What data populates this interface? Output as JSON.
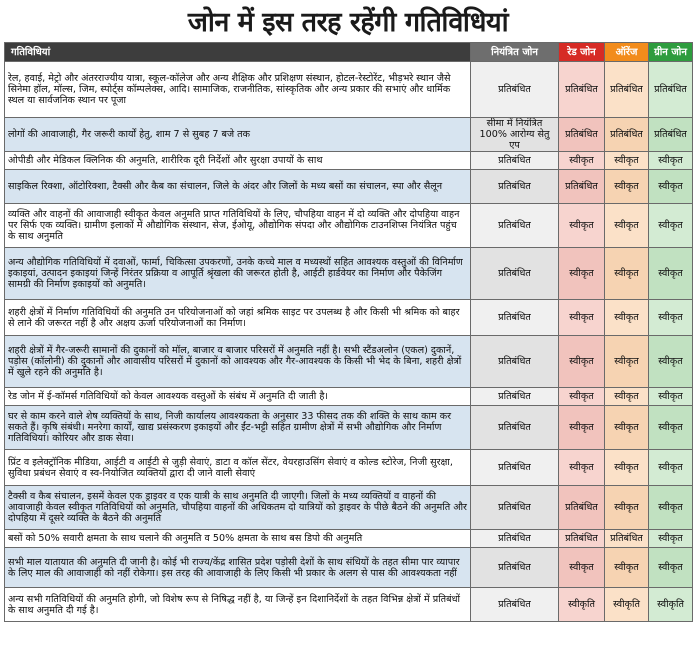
{
  "title": "जोन में इस तरह रहेंगी गतिविधियां",
  "headers": {
    "activity": "गतिविधियां",
    "containment": "नियंत्रित जोन",
    "red": "रेड जोन",
    "orange": "ऑरेंज",
    "green": "ग्रीन जोन"
  },
  "colors": {
    "header_dark": "#3d3d3d",
    "containment": "#6e6e6e",
    "red": "#d62b25",
    "orange": "#f28c1c",
    "green": "#2e9c3e"
  },
  "rows": [
    {
      "activity": "रेल, हवाई, मेट्रो और अंतरराज्यीय यात्रा, स्कूल-कॉलेज और अन्य शैक्षिक और प्रशिक्षण संस्थान, होटल-रेस्टोरेंट, भीड़भरे स्थान जैसे सिनेमा हॉल, मॉल्स, जिम, स्पोर्ट्स कॉम्पलेक्स, आदि। सामाजिक, राजनीतिक, सांस्कृतिक और अन्य प्रकार की सभाएं और धार्मिक स्थल या सार्वजनिक स्थान पर पूजा",
      "containment": "प्रतिबंधित",
      "red": "प्रतिबंधित",
      "orange": "प्रतिबंधित",
      "green": "प्रतिबंधित"
    },
    {
      "activity": "लोगों की आवाजाही, गैर जरूरी कार्यों हेतु, शाम 7 से सुबह 7 बजे तक",
      "containment": "सीमा में नियंत्रित 100% आरोग्य सेतु एप",
      "red": "प्रतिबंधित",
      "orange": "प्रतिबंधित",
      "green": "प्रतिबंधित"
    },
    {
      "activity": "ओपीडी और मेडिकल क्लिनिक की अनुमति, शारीरिक दूरी निर्देशों और सुरक्षा उपायों के साथ",
      "containment": "प्रतिबंधित",
      "red": "स्वीकृत",
      "orange": "स्वीकृत",
      "green": "स्वीकृत"
    },
    {
      "activity": "साइकिल रिक्शा, ऑटोरिक्शा, टैक्सी और कैब का संचालन, जिले के अंदर और जिलों के मध्य बसों का संचालन, स्पा और सैलून",
      "containment": "प्रतिबंधित",
      "red": "प्रतिबंधित",
      "orange": "स्वीकृत",
      "green": "स्वीकृत"
    },
    {
      "activity": "व्यक्ति और वाहनों की आवाजाही स्वीकृत केवल अनुमति प्राप्त गतिविधियों के लिए, चौपहिया वाहन में दो व्यक्ति और दोपहिया वाहन पर सिर्फ एक व्यक्ति। ग्रामीण इलाकों में औद्योगिक संस्थान, सेज, ईओयू, औद्योगिक संपदा और औद्योगिक टाउनशिप्स नियंत्रित पहुंच के साथ अनुमति",
      "containment": "प्रतिबंधित",
      "red": "स्वीकृत",
      "orange": "स्वीकृत",
      "green": "स्वीकृत"
    },
    {
      "activity": "अन्य औद्योगिक गतिविधियों में दवाओं, फार्मा, चिकित्सा उपकरणों, उनके कच्चे माल व मध्यस्थों सहित आवश्यक वस्तुओं की विनिर्माण इकाइयां, उत्पादन इकाइयां जिन्हें निरंतर प्रक्रिया व आपूर्ति श्रृंखला की जरूरत होती है, आईटी हार्डवेयर का निर्माण और पैकेजिंग सामग्री की निर्माण इकाइयों को अनुमति।",
      "containment": "प्रतिबंधित",
      "red": "स्वीकृत",
      "orange": "स्वीकृत",
      "green": "स्वीकृत"
    },
    {
      "activity": "शहरी क्षेत्रों में निर्माण गतिविधियों की अनुमति उन परियोजनाओं को जहां श्रमिक साइट पर उपलब्ध है और किसी भी श्रमिक को बाहर से लाने की जरूरत नहीं है और अक्षय ऊर्जा परियोजनाओं का निर्माण।",
      "containment": "प्रतिबंधित",
      "red": "स्वीकृत",
      "orange": "स्वीकृत",
      "green": "स्वीकृत"
    },
    {
      "activity": "शहरी क्षेत्रों में गैर-जरूरी सामानों की दुकानों को मॉल, बाजार व बाजार परिसरों में अनुमति नहीं है। सभी स्टैंडअलोन (एकल) दुकानें, पड़ोस (कॉलोनी) की दुकानों और आवासीय परिसरों में दुकानों को आवश्यक और गैर-आवश्यक के किसी भी भेद के बिना, शहरी क्षेत्रों में खुले रहने की अनुमति है।",
      "containment": "प्रतिबंधित",
      "red": "स्वीकृत",
      "orange": "स्वीकृत",
      "green": "स्वीकृत"
    },
    {
      "activity": "रेड जोन में ई-कॉमर्स गतिविधियों को केवल आवश्यक वस्तुओं के संबंध में अनुमति दी जाती है।",
      "containment": "प्रतिबंधित",
      "red": "स्वीकृत",
      "orange": "स्वीकृत",
      "green": "स्वीकृत"
    },
    {
      "activity": "घर से काम करने वाले शेष व्यक्तियों के साथ, निजी कार्यालय आवश्यकता के अनुसार 33 फीसद तक की शक्ति के साथ काम कर सकते हैं। कृषि संबंधी। मनरेगा कार्यों, खाद्य प्रसंस्करण इकाइयों और ईंट-भट्टी सहित ग्रामीण क्षेत्रों में सभी औद्योगिक और निर्माण गतिविधियां। कोरियर और डाक सेवा।",
      "containment": "प्रतिबंधित",
      "red": "स्वीकृत",
      "orange": "स्वीकृत",
      "green": "स्वीकृत"
    },
    {
      "activity": "प्रिंट व इलेक्ट्रॉनिक मीडिया, आईटी व आईटी से जुड़ी सेवाएं, डाटा व कॉल सेंटर, वेयरहाउसिंग सेवाएं व कोल्ड स्टोरेज, निजी सुरक्षा, सुविधा प्रबंधन सेवाएं व स्व-नियोजित व्यक्तियों द्वारा दी जाने वाली सेवाएं",
      "containment": "प्रतिबंधित",
      "red": "स्वीकृत",
      "orange": "स्वीकृत",
      "green": "स्वीकृत"
    },
    {
      "activity": "टैक्सी व कैब संचालन, इसमें केवल एक ड्राइवर व एक यात्री के साथ अनुमति दी जाएगी। जिलों के मध्य व्यक्तियों व वाहनों की आवाजाही केवल स्वीकृत गतिविधियों को अनुमति, चौपहिया वाहनों की अधिकतम दो यात्रियों को ड्राइवर के पीछे बैठने की अनुमति और दोपहिया में दूसरे व्यक्ति के बैठने की अनुमति",
      "containment": "प्रतिबंधित",
      "red": "प्रतिबंधित",
      "orange": "स्वीकृत",
      "green": "स्वीकृत"
    },
    {
      "activity": "बसों को 50% सवारी क्षमता के साथ चलाने की अनुमति व 50% क्षमता के साथ बस डिपो की अनुमति",
      "containment": "प्रतिबंधित",
      "red": "प्रतिबंधित",
      "orange": "प्रतिबंधित",
      "green": "स्वीकृत"
    },
    {
      "activity": "सभी माल यातायात की अनुमति दी जानी है। कोई भी राज्य/केंद्र शासित प्रदेश पड़ोसी देशों के साथ संधियों के तहत सीमा पार व्यापार के लिए माल की आवाजाही को नहीं रोकेगा। इस तरह की आवाजाही के लिए किसी भी प्रकार के अलग से पास की आवश्यकता नहीं",
      "containment": "प्रतिबंधित",
      "red": "स्वीकृत",
      "orange": "स्वीकृत",
      "green": "स्वीकृत"
    },
    {
      "activity": "अन्य सभी गतिविधियों की अनुमति होगी, जो विशेष रूप से निषिद्ध नहीं है, या जिन्हें इन दिशानिर्देशों के तहत विभिन्न क्षेत्रों में प्रतिबंधों के साथ अनुमति दी गई है।",
      "containment": "प्रतिबंधित",
      "red": "स्वीकृति",
      "orange": "स्वीकृति",
      "green": "स्वीकृति"
    }
  ]
}
